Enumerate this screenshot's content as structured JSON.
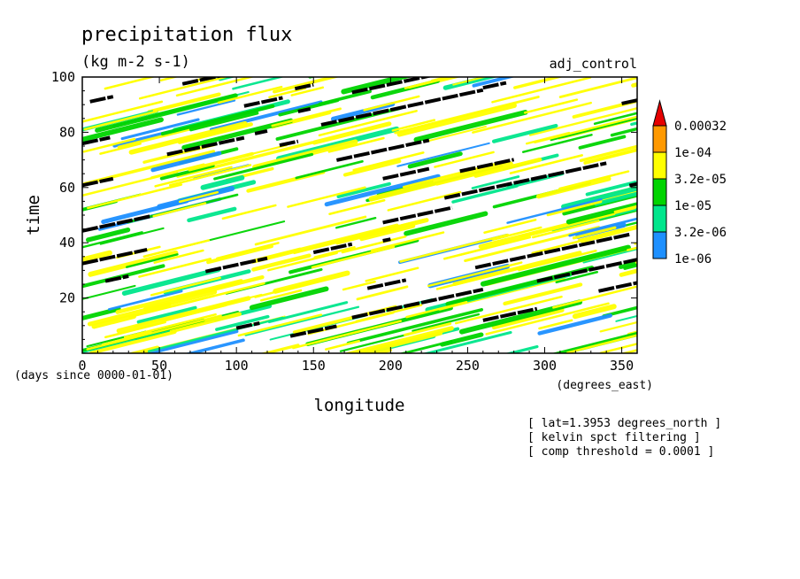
{
  "chart_data": {
    "type": "heatmap",
    "title": "precipitation flux",
    "units": "(kg m-2 s-1)",
    "dataset_label": "adj_control",
    "xlabel": "longitude",
    "x_units": "(degrees_east)",
    "ylabel": "time",
    "y_units": "(days since 0000-01-01)",
    "xlim": [
      0,
      360
    ],
    "ylim": [
      0,
      100
    ],
    "x_ticks": [
      0,
      50,
      100,
      150,
      200,
      250,
      300,
      350
    ],
    "y_ticks": [
      20,
      40,
      60,
      80,
      100
    ],
    "colorbar": {
      "levels": [
        "1e-06",
        "3.2e-06",
        "1e-05",
        "3.2e-05",
        "1e-04",
        "0.00032"
      ],
      "colors": [
        "#1e90ff",
        "#00e68c",
        "#00d400",
        "#ffff00",
        "#ff9900",
        "#e60000"
      ]
    },
    "annotations": [
      "[ lat=1.3953 degrees_north ]",
      "[ kelvin spct filtering ]",
      "[ comp threshold = 0.0001 ]"
    ],
    "threshold_segments": [
      {
        "lon0": 5,
        "lon1": 20,
        "t": 92
      },
      {
        "lon0": 65,
        "lon1": 90,
        "t": 99
      },
      {
        "lon0": 138,
        "lon1": 150,
        "t": 96.5
      },
      {
        "lon0": 175,
        "lon1": 235,
        "t": 98
      },
      {
        "lon0": 260,
        "lon1": 275,
        "t": 97
      },
      {
        "lon0": 105,
        "lon1": 130,
        "t": 91
      },
      {
        "lon0": 140,
        "lon1": 148,
        "t": 88
      },
      {
        "lon0": 155,
        "lon1": 260,
        "t": 89
      },
      {
        "lon0": 350,
        "lon1": 360,
        "t": 91
      },
      {
        "lon0": 0,
        "lon1": 18,
        "t": 77
      },
      {
        "lon0": 55,
        "lon1": 105,
        "t": 75
      },
      {
        "lon0": 112,
        "lon1": 120,
        "t": 80
      },
      {
        "lon0": 128,
        "lon1": 140,
        "t": 76
      },
      {
        "lon0": 165,
        "lon1": 225,
        "t": 73.5
      },
      {
        "lon0": 245,
        "lon1": 280,
        "t": 68
      },
      {
        "lon0": 0,
        "lon1": 20,
        "t": 62
      },
      {
        "lon0": 195,
        "lon1": 225,
        "t": 65
      },
      {
        "lon0": 235,
        "lon1": 340,
        "t": 62.5
      },
      {
        "lon0": 355,
        "lon1": 360,
        "t": 61
      },
      {
        "lon0": 0,
        "lon1": 45,
        "t": 47
      },
      {
        "lon0": 195,
        "lon1": 240,
        "t": 50
      },
      {
        "lon0": 0,
        "lon1": 42,
        "t": 35
      },
      {
        "lon0": 150,
        "lon1": 175,
        "t": 38
      },
      {
        "lon0": 195,
        "lon1": 200,
        "t": 41
      },
      {
        "lon0": 255,
        "lon1": 355,
        "t": 37
      },
      {
        "lon0": 80,
        "lon1": 120,
        "t": 32
      },
      {
        "lon0": 15,
        "lon1": 30,
        "t": 27
      },
      {
        "lon0": 185,
        "lon1": 210,
        "t": 25
      },
      {
        "lon0": 295,
        "lon1": 360,
        "t": 30
      },
      {
        "lon0": 175,
        "lon1": 260,
        "t": 18
      },
      {
        "lon0": 260,
        "lon1": 295,
        "t": 14
      },
      {
        "lon0": 335,
        "lon1": 360,
        "t": 24
      },
      {
        "lon0": 100,
        "lon1": 115,
        "t": 10
      },
      {
        "lon0": 135,
        "lon1": 165,
        "t": 8
      }
    ]
  }
}
